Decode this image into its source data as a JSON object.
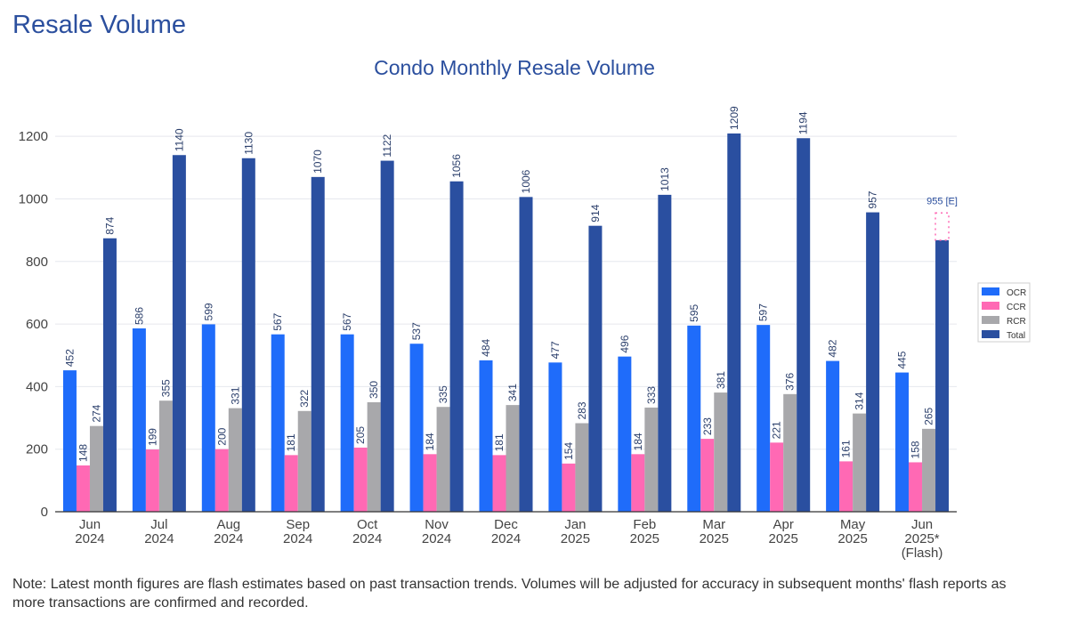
{
  "page": {
    "heading": "Resale Volume",
    "note": "Note: Latest month figures are flash estimates based on past transaction trends. Volumes will be adjusted for accuracy in subsequent months' flash reports as more transactions are confirmed and recorded."
  },
  "chart_data": {
    "type": "bar",
    "title": "Condo Monthly Resale Volume",
    "xlabel": "",
    "ylabel": "",
    "ylim": [
      0,
      1300
    ],
    "yticks": [
      0,
      200,
      400,
      600,
      800,
      1000,
      1200
    ],
    "grid": true,
    "legend_position": "right",
    "categories": [
      [
        "Jun",
        "2024"
      ],
      [
        "Jul",
        "2024"
      ],
      [
        "Aug",
        "2024"
      ],
      [
        "Sep",
        "2024"
      ],
      [
        "Oct",
        "2024"
      ],
      [
        "Nov",
        "2024"
      ],
      [
        "Dec",
        "2024"
      ],
      [
        "Jan",
        "2025"
      ],
      [
        "Feb",
        "2025"
      ],
      [
        "Mar",
        "2025"
      ],
      [
        "Apr",
        "2025"
      ],
      [
        "May",
        "2025"
      ],
      [
        "Jun",
        "2025*",
        "(Flash)"
      ]
    ],
    "series": [
      {
        "name": "OCR",
        "color": "#1f6cfa",
        "values": [
          452,
          586,
          599,
          567,
          567,
          537,
          484,
          477,
          496,
          595,
          597,
          482,
          445
        ]
      },
      {
        "name": "CCR",
        "color": "#ff69b4",
        "values": [
          148,
          199,
          200,
          181,
          205,
          184,
          181,
          154,
          184,
          233,
          221,
          161,
          158
        ]
      },
      {
        "name": "RCR",
        "color": "#a8a8ab",
        "values": [
          274,
          355,
          331,
          322,
          350,
          335,
          341,
          283,
          333,
          381,
          376,
          314,
          265
        ]
      },
      {
        "name": "Total",
        "color": "#2a4fa0",
        "values": [
          874,
          1140,
          1130,
          1070,
          1122,
          1056,
          1006,
          914,
          1013,
          1209,
          1194,
          957,
          868
        ],
        "labels": [
          "874",
          "1140",
          "1130",
          "1070",
          "1122",
          "1056",
          "1006",
          "914",
          "1013",
          "1209",
          "1194",
          "957",
          ""
        ]
      }
    ],
    "annotations": [
      {
        "category_index": 12,
        "series": "Total",
        "estimate_value": 955,
        "text": "955 [E]",
        "color": "#ff69b4"
      }
    ]
  }
}
